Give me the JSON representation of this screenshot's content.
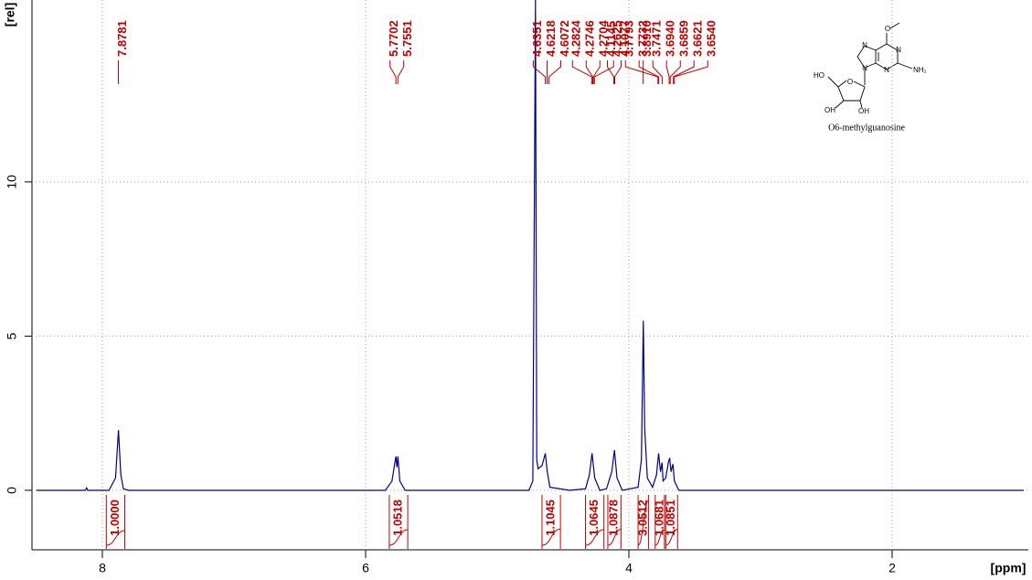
{
  "chart_data": {
    "type": "nmr",
    "xlabel": "[ppm]",
    "ylabel": "[rel]",
    "xlim": [
      8.5,
      1.0
    ],
    "ylim": [
      -1.9,
      15.9
    ],
    "xticks": [
      8,
      6,
      4,
      2
    ],
    "yticks": [
      0,
      5,
      10
    ],
    "grid": true,
    "color": "#00008b",
    "x": [
      8.5,
      8.13,
      8.12,
      8.11,
      7.95,
      7.9,
      7.878,
      7.86,
      7.84,
      7.8,
      6.5,
      5.85,
      5.8,
      5.77,
      5.762,
      5.755,
      5.74,
      5.7,
      5.0,
      4.76,
      4.73,
      4.71,
      4.7,
      4.69,
      4.66,
      4.635,
      4.62,
      4.6,
      4.45,
      4.33,
      4.3,
      4.28,
      4.26,
      4.22,
      4.17,
      4.13,
      4.11,
      4.09,
      4.05,
      3.93,
      3.905,
      3.89,
      3.88,
      3.86,
      3.82,
      3.79,
      3.774,
      3.76,
      3.748,
      3.74,
      3.72,
      3.7,
      3.69,
      3.68,
      3.665,
      3.654,
      3.62,
      3.5,
      2.5,
      1.0
    ],
    "values": [
      0,
      0,
      0.08,
      0,
      0,
      0.4,
      1.95,
      0.5,
      0.05,
      0,
      0,
      0,
      0.3,
      1.1,
      0.75,
      1.1,
      0.3,
      0,
      0,
      0,
      0.3,
      15.9,
      1.0,
      0.7,
      0.8,
      1.2,
      0.6,
      0.1,
      0,
      0.05,
      0.5,
      1.2,
      0.4,
      0,
      0.05,
      0.6,
      1.3,
      0.4,
      0,
      0.1,
      1.0,
      5.5,
      2.0,
      0.4,
      0.1,
      0.5,
      1.2,
      0.6,
      0.9,
      0.3,
      0.4,
      0.9,
      1.05,
      0.6,
      0.85,
      0.3,
      0,
      0,
      0,
      0
    ],
    "peak_color": "#c00000",
    "peaks": {
      "positions": [
        7.8781,
        5.7702,
        5.7551,
        4.6351,
        4.6218,
        4.6072,
        4.2824,
        4.2746,
        4.2704,
        4.2625,
        4.1145,
        4.1077,
        3.891,
        3.7793,
        3.7732,
        3.7471,
        3.694,
        3.6859,
        3.6621,
        3.654
      ],
      "labels": [
        "7.8781",
        "5.7702",
        "5.7551",
        "4.6351",
        "4.6218",
        "4.6072",
        "4.2824",
        "4.2746",
        "4.2704",
        "4.2625",
        "4.1145",
        "4.1077",
        "3.8910",
        "3.7793",
        "3.7732",
        "3.7471",
        "3.6940",
        "3.6859",
        "3.6621",
        "3.6540"
      ]
    },
    "integrals": {
      "regions": [
        [
          7.97,
          7.83
        ],
        [
          5.82,
          5.68
        ],
        [
          4.66,
          4.52
        ],
        [
          4.33,
          4.19
        ],
        [
          4.16,
          4.06
        ],
        [
          3.93,
          3.85
        ],
        [
          3.8,
          3.73
        ],
        [
          3.72,
          3.63
        ]
      ],
      "values": [
        1.0,
        1.0518,
        1.1045,
        1.0645,
        1.0878,
        3.0512,
        1.0681,
        1.0851
      ],
      "value_labels": [
        "1.0000",
        "1.0518",
        "1.1045",
        "1.0645",
        "1.0878",
        "3.0512",
        "1.0681",
        "1.0851"
      ]
    }
  },
  "structure": {
    "atoms": [
      "N",
      "N",
      "N",
      "N",
      "O",
      "NH₂",
      "HO",
      "O",
      "OH",
      "OH"
    ],
    "caption": "O6-methylguanosine"
  }
}
